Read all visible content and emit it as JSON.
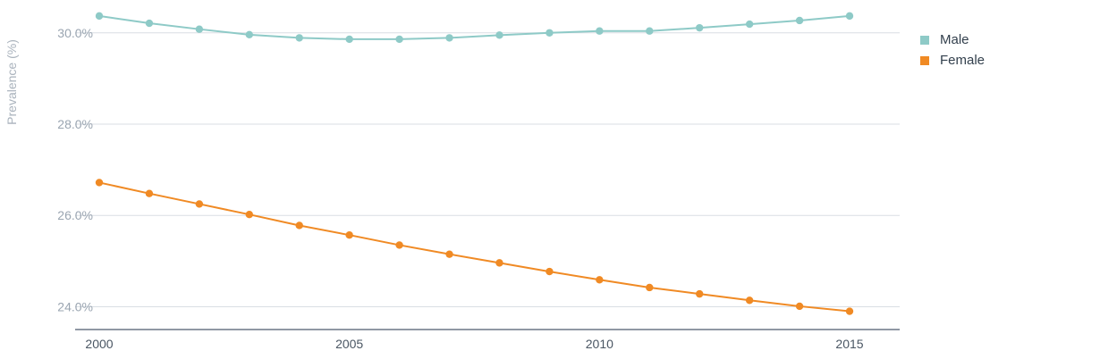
{
  "chart_data": {
    "type": "line",
    "title": "",
    "xlabel": "",
    "ylabel": "Prevalence (%)",
    "x": [
      2000,
      2001,
      2002,
      2003,
      2004,
      2005,
      2006,
      2007,
      2008,
      2009,
      2010,
      2011,
      2012,
      2013,
      2014,
      2015
    ],
    "xticks": [
      "2000",
      "2005",
      "2010",
      "2015"
    ],
    "yticks": [
      "24.0%",
      "26.0%",
      "28.0%",
      "30.0%"
    ],
    "ylim": [
      23.5,
      30.7
    ],
    "grid": true,
    "legend_position": "top-right",
    "series": [
      {
        "name": "Male",
        "color": "#8ecac7",
        "values": [
          30.37,
          30.21,
          30.08,
          29.96,
          29.89,
          29.86,
          29.86,
          29.89,
          29.95,
          30.0,
          30.04,
          30.04,
          30.11,
          30.19,
          30.27,
          30.37
        ]
      },
      {
        "name": "Female",
        "color": "#f08a24",
        "values": [
          26.72,
          26.48,
          26.25,
          26.02,
          25.78,
          25.57,
          25.35,
          25.15,
          24.96,
          24.77,
          24.59,
          24.42,
          24.28,
          24.14,
          24.01,
          23.9
        ]
      }
    ]
  }
}
